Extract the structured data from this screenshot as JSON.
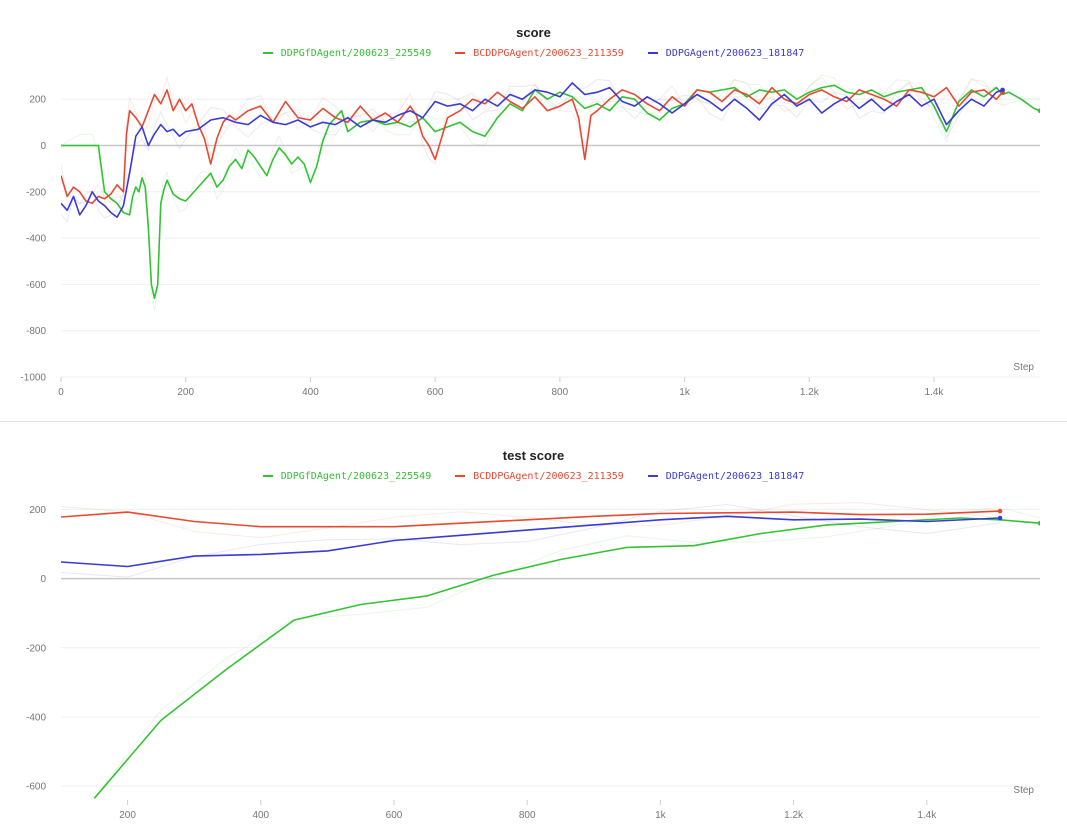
{
  "series_meta": [
    {
      "name": "DDPGfDAgent/200623_225549",
      "color": "#33c233"
    },
    {
      "name": "BCDDPGAgent/200623_211359",
      "color": "#e64a33"
    },
    {
      "name": "DDPGAgent/200623_181847",
      "color": "#3a3ad6"
    }
  ],
  "chart_data": [
    {
      "type": "line",
      "title": "score",
      "xlabel": "Step",
      "ylabel": "",
      "xlim": [
        0,
        1570
      ],
      "ylim": [
        -1000,
        300
      ],
      "xticks": [
        0,
        200,
        400,
        600,
        800,
        1000,
        1200,
        1400
      ],
      "xtick_labels": [
        "0",
        "200",
        "400",
        "600",
        "800",
        "1k",
        "1.2k",
        "1.4k"
      ],
      "yticks": [
        200,
        0,
        -200,
        -400,
        -600,
        -800,
        -1000
      ],
      "ytick_labels": [
        "200",
        "0",
        "-200",
        "-400",
        "-600",
        "-800",
        "-1000"
      ],
      "series": [
        {
          "name": "DDPGfDAgent/200623_225549",
          "x": [
            0,
            30,
            50,
            55,
            60,
            70,
            80,
            90,
            100,
            110,
            115,
            120,
            125,
            130,
            135,
            140,
            145,
            150,
            155,
            160,
            165,
            170,
            180,
            190,
            200,
            210,
            220,
            230,
            240,
            250,
            260,
            270,
            280,
            290,
            300,
            310,
            320,
            330,
            340,
            350,
            360,
            370,
            380,
            390,
            400,
            410,
            420,
            430,
            440,
            450,
            460,
            480,
            500,
            520,
            540,
            560,
            580,
            600,
            620,
            640,
            660,
            680,
            700,
            720,
            740,
            760,
            780,
            800,
            820,
            840,
            860,
            880,
            900,
            920,
            940,
            960,
            980,
            1000,
            1020,
            1040,
            1060,
            1080,
            1100,
            1120,
            1140,
            1160,
            1180,
            1200,
            1220,
            1240,
            1260,
            1280,
            1300,
            1320,
            1340,
            1360,
            1380,
            1400,
            1420,
            1440,
            1460,
            1480,
            1500,
            1510,
            1520,
            1540,
            1560,
            1570
          ],
          "y": [
            0,
            0,
            0,
            0,
            0,
            -200,
            -230,
            -250,
            -290,
            -300,
            -220,
            -180,
            -200,
            -140,
            -180,
            -350,
            -600,
            -660,
            -600,
            -250,
            -190,
            -150,
            -210,
            -230,
            -240,
            -210,
            -180,
            -150,
            -120,
            -180,
            -150,
            -90,
            -60,
            -100,
            -20,
            -50,
            -90,
            -130,
            -60,
            -10,
            -40,
            -80,
            -50,
            -80,
            -160,
            -90,
            20,
            90,
            120,
            150,
            60,
            100,
            110,
            90,
            100,
            80,
            120,
            60,
            80,
            100,
            60,
            40,
            120,
            180,
            150,
            240,
            200,
            230,
            210,
            160,
            180,
            150,
            210,
            200,
            140,
            110,
            160,
            180,
            240,
            230,
            240,
            250,
            210,
            240,
            230,
            240,
            200,
            230,
            250,
            260,
            230,
            220,
            240,
            210,
            230,
            240,
            250,
            170,
            60,
            190,
            240,
            210,
            250,
            220,
            230,
            200,
            160,
            150
          ]
        },
        {
          "name": "BCDDPGAgent/200623_211359",
          "x": [
            0,
            10,
            20,
            30,
            40,
            50,
            60,
            70,
            80,
            90,
            100,
            105,
            110,
            120,
            130,
            140,
            150,
            160,
            170,
            180,
            190,
            200,
            210,
            220,
            230,
            240,
            250,
            260,
            270,
            280,
            300,
            320,
            340,
            360,
            380,
            400,
            420,
            440,
            460,
            480,
            500,
            520,
            540,
            560,
            570,
            580,
            590,
            600,
            620,
            640,
            660,
            680,
            700,
            720,
            740,
            760,
            780,
            800,
            820,
            830,
            840,
            850,
            860,
            880,
            900,
            920,
            940,
            960,
            980,
            1000,
            1020,
            1040,
            1060,
            1080,
            1100,
            1120,
            1140,
            1160,
            1180,
            1200,
            1220,
            1240,
            1260,
            1280,
            1300,
            1320,
            1340,
            1360,
            1380,
            1400,
            1420,
            1440,
            1460,
            1480,
            1500,
            1510
          ],
          "y": [
            -130,
            -220,
            -180,
            -200,
            -240,
            -250,
            -220,
            -230,
            -210,
            -170,
            -200,
            50,
            150,
            120,
            80,
            150,
            220,
            180,
            240,
            150,
            200,
            150,
            180,
            90,
            30,
            -80,
            30,
            100,
            130,
            110,
            150,
            170,
            100,
            190,
            120,
            110,
            160,
            120,
            100,
            170,
            110,
            140,
            100,
            170,
            130,
            40,
            0,
            -60,
            120,
            150,
            200,
            180,
            230,
            190,
            160,
            210,
            150,
            170,
            200,
            120,
            -60,
            130,
            150,
            200,
            240,
            220,
            180,
            150,
            210,
            170,
            240,
            230,
            190,
            240,
            220,
            180,
            250,
            200,
            180,
            220,
            240,
            210,
            190,
            240,
            220,
            200,
            170,
            240,
            230,
            210,
            250,
            170,
            230,
            240,
            200,
            230
          ]
        },
        {
          "name": "DDPGAgent/200623_181847",
          "x": [
            0,
            10,
            20,
            30,
            40,
            50,
            60,
            70,
            80,
            90,
            100,
            110,
            120,
            130,
            140,
            150,
            160,
            170,
            180,
            190,
            200,
            220,
            240,
            260,
            280,
            300,
            320,
            340,
            360,
            380,
            400,
            420,
            440,
            460,
            480,
            500,
            520,
            540,
            560,
            580,
            600,
            620,
            640,
            660,
            680,
            700,
            720,
            740,
            760,
            780,
            800,
            820,
            840,
            860,
            880,
            900,
            920,
            940,
            960,
            980,
            1000,
            1020,
            1040,
            1060,
            1080,
            1100,
            1120,
            1140,
            1160,
            1180,
            1200,
            1220,
            1240,
            1260,
            1280,
            1300,
            1320,
            1340,
            1360,
            1380,
            1400,
            1420,
            1440,
            1460,
            1480,
            1500,
            1510
          ],
          "y": [
            -250,
            -280,
            -220,
            -300,
            -260,
            -200,
            -240,
            -260,
            -290,
            -310,
            -260,
            -120,
            40,
            80,
            0,
            50,
            90,
            60,
            70,
            40,
            60,
            70,
            110,
            120,
            100,
            90,
            130,
            100,
            90,
            110,
            80,
            100,
            90,
            120,
            80,
            110,
            100,
            130,
            150,
            120,
            190,
            170,
            180,
            150,
            200,
            170,
            220,
            200,
            240,
            230,
            210,
            270,
            220,
            230,
            250,
            190,
            170,
            210,
            180,
            140,
            180,
            220,
            190,
            150,
            200,
            160,
            110,
            180,
            220,
            170,
            200,
            140,
            180,
            210,
            160,
            200,
            150,
            190,
            220,
            170,
            200,
            90,
            150,
            200,
            170,
            230,
            240
          ]
        }
      ]
    },
    {
      "type": "line",
      "title": "test score",
      "xlabel": "Step",
      "ylabel": "",
      "xlim": [
        100,
        1570
      ],
      "ylim": [
        -640,
        230
      ],
      "xticks": [
        200,
        400,
        600,
        800,
        1000,
        1200,
        1400
      ],
      "xtick_labels": [
        "200",
        "400",
        "600",
        "800",
        "1k",
        "1.2k",
        "1.4k"
      ],
      "yticks": [
        200,
        0,
        -200,
        -400,
        -600
      ],
      "ytick_labels": [
        "200",
        "0",
        "-200",
        "-400",
        "-600"
      ],
      "series": [
        {
          "name": "DDPGfDAgent/200623_225549",
          "x": [
            150,
            250,
            350,
            450,
            550,
            650,
            750,
            850,
            950,
            1050,
            1150,
            1250,
            1350,
            1450,
            1510,
            1570
          ],
          "y": [
            -635,
            -410,
            -260,
            -120,
            -75,
            -50,
            10,
            55,
            90,
            95,
            130,
            155,
            165,
            175,
            170,
            160
          ]
        },
        {
          "name": "BCDDPGAgent/200623_211359",
          "x": [
            100,
            200,
            300,
            400,
            500,
            600,
            700,
            800,
            900,
            1000,
            1100,
            1200,
            1300,
            1400,
            1510
          ],
          "y": [
            178,
            192,
            165,
            150,
            150,
            150,
            160,
            170,
            180,
            188,
            190,
            192,
            185,
            186,
            195
          ]
        },
        {
          "name": "DDPGAgent/200623_181847",
          "x": [
            100,
            200,
            300,
            400,
            500,
            600,
            700,
            800,
            900,
            1000,
            1100,
            1200,
            1300,
            1400,
            1510
          ],
          "y": [
            48,
            35,
            65,
            70,
            80,
            110,
            125,
            140,
            155,
            170,
            180,
            170,
            172,
            165,
            175
          ]
        }
      ]
    }
  ]
}
